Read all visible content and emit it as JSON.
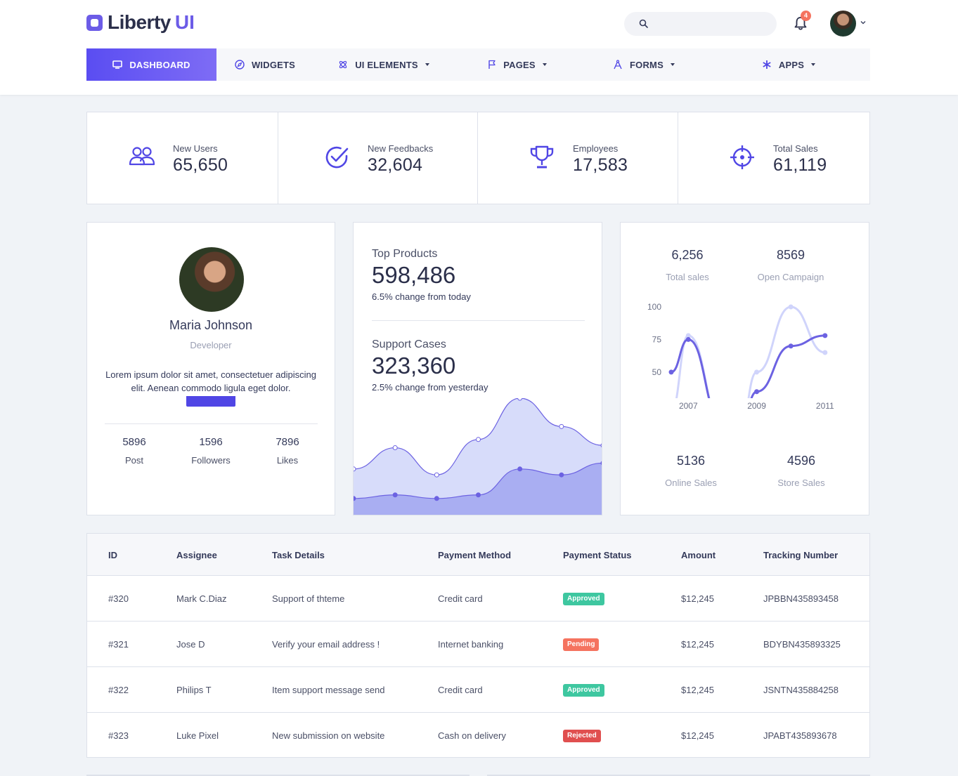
{
  "brand": {
    "name": "Liberty",
    "suffix": "UI"
  },
  "header": {
    "search_placeholder": "",
    "notification_count": "4"
  },
  "nav": [
    {
      "label": "DASHBOARD",
      "icon": "monitor-icon",
      "active": true,
      "dropdown": false
    },
    {
      "label": "WIDGETS",
      "icon": "compass-icon",
      "active": false,
      "dropdown": false
    },
    {
      "label": "UI ELEMENTS",
      "icon": "atom-icon",
      "active": false,
      "dropdown": true
    },
    {
      "label": "PAGES",
      "icon": "flag-icon",
      "active": false,
      "dropdown": true
    },
    {
      "label": "FORMS",
      "icon": "compass-tool-icon",
      "active": false,
      "dropdown": true
    },
    {
      "label": "APPS",
      "icon": "asterisk-icon",
      "active": false,
      "dropdown": true
    }
  ],
  "stats": [
    {
      "label": "New Users",
      "value": "65,650",
      "icon": "users-icon"
    },
    {
      "label": "New Feedbacks",
      "value": "32,604",
      "icon": "check-circle-icon"
    },
    {
      "label": "Employees",
      "value": "17,583",
      "icon": "trophy-icon"
    },
    {
      "label": "Total Sales",
      "value": "61,119",
      "icon": "crosshair-icon"
    }
  ],
  "profile": {
    "name": "Maria Johnson",
    "role": "Developer",
    "description": "Lorem ipsum dolor sit amet, consectetuer adipiscing elit. Aenean commodo ligula eget dolor.",
    "stats": [
      {
        "value": "5896",
        "label": "Post"
      },
      {
        "value": "1596",
        "label": "Followers"
      },
      {
        "value": "7896",
        "label": "Likes"
      }
    ]
  },
  "products": {
    "top_title": "Top Products",
    "top_value": "598,486",
    "top_change": "6.5% change from today",
    "support_title": "Support Cases",
    "support_value": "323,360",
    "support_change": "2.5% change from yesterday"
  },
  "sales": {
    "total_sales_value": "6,256",
    "total_sales_label": "Total sales",
    "open_campaign_value": "8569",
    "open_campaign_label": "Open Campaign",
    "online_sales_value": "5136",
    "online_sales_label": "Online Sales",
    "store_sales_value": "4596",
    "store_sales_label": "Store Sales"
  },
  "chart_data": [
    {
      "type": "area",
      "series": [
        {
          "values": [
            40,
            58,
            35,
            65,
            100,
            76,
            60
          ]
        },
        {
          "values": [
            15,
            18,
            15,
            18,
            40,
            35,
            45
          ]
        }
      ],
      "colors": [
        "#d7dcfa",
        "#a9aef2"
      ]
    },
    {
      "type": "line",
      "x_ticks": [
        "2007",
        "2009",
        "2011"
      ],
      "y_ticks": [
        "100",
        "75",
        "50"
      ],
      "ylim": [
        30,
        100
      ],
      "series": [
        {
          "x": [
            2006.5,
            2007,
            2008,
            2008.5,
            2009,
            2010,
            2011
          ],
          "y": [
            20,
            78,
            10,
            5,
            50,
            100,
            65
          ],
          "color": "#d0d4fb"
        },
        {
          "x": [
            2006.5,
            2007,
            2008,
            2008.5,
            2009,
            2010,
            2011
          ],
          "y": [
            50,
            75,
            10,
            5,
            35,
            70,
            78
          ],
          "color": "#6c62e2"
        }
      ]
    }
  ],
  "table": {
    "headers": [
      "ID",
      "Assignee",
      "Task Details",
      "Payment Method",
      "Payment Status",
      "Amount",
      "Tracking Number"
    ],
    "rows": [
      {
        "id": "#320",
        "assignee": "Mark C.Diaz",
        "task": "Support of thteme",
        "method": "Credit card",
        "status": "Approved",
        "status_type": "approved",
        "amount": "$12,245",
        "tracking": "JPBBN435893458"
      },
      {
        "id": "#321",
        "assignee": "Jose D",
        "task": "Verify your email address !",
        "method": "Internet banking",
        "status": "Pending",
        "status_type": "pending",
        "amount": "$12,245",
        "tracking": "BDYBN435893325"
      },
      {
        "id": "#322",
        "assignee": "Philips T",
        "task": "Item support message send",
        "method": "Credit card",
        "status": "Approved",
        "status_type": "approved",
        "amount": "$12,245",
        "tracking": "JSNTN435884258"
      },
      {
        "id": "#323",
        "assignee": "Luke Pixel",
        "task": "New submission on website",
        "method": "Cash on delivery",
        "status": "Rejected",
        "status_type": "rejected",
        "amount": "$12,245",
        "tracking": "JPABT435893678"
      }
    ]
  }
}
